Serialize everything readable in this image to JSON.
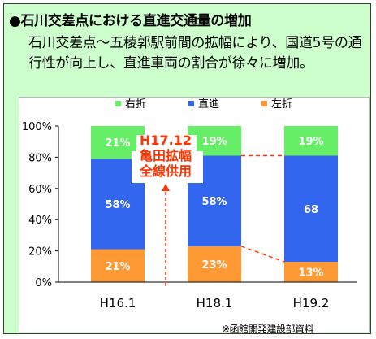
{
  "header": {
    "title": "●石川交差点における直進交通量の増加",
    "description": "石川交差点～五稜郭駅前間の拡幅により、国道5号の通行性が向上し、直進車両の割合が徐々に増加。"
  },
  "source_note": "※函館開発建設部資料",
  "colors": {
    "right_turn": "#66ee66",
    "straight": "#3366ee",
    "left_turn": "#ff9933",
    "annotation": "#ff3300"
  },
  "chart_data": {
    "type": "bar",
    "stacked": true,
    "categories": [
      "H16.1",
      "H18.1",
      "H19.2"
    ],
    "series": [
      {
        "name": "左折",
        "values": [
          21,
          23,
          13
        ],
        "labels": [
          "21%",
          "23%",
          "13%"
        ],
        "color": "#ff9933"
      },
      {
        "name": "直進",
        "values": [
          58,
          58,
          68
        ],
        "labels": [
          "58%",
          "58%",
          "68"
        ],
        "color": "#3366ee"
      },
      {
        "name": "右折",
        "values": [
          21,
          19,
          19
        ],
        "labels": [
          "21%",
          "19%",
          "19%"
        ],
        "color": "#66ee66"
      }
    ],
    "legend_order": [
      "右折",
      "直進",
      "左折"
    ],
    "legend_position": "top",
    "ylim": [
      0,
      100
    ],
    "yticks": [
      "0%",
      "20%",
      "40%",
      "60%",
      "80%",
      "100%"
    ],
    "grid": false,
    "annotation": {
      "lines": [
        "H17.12",
        "亀田拡幅",
        "全線供用"
      ],
      "between_categories": [
        "H16.1",
        "H18.1"
      ]
    }
  }
}
